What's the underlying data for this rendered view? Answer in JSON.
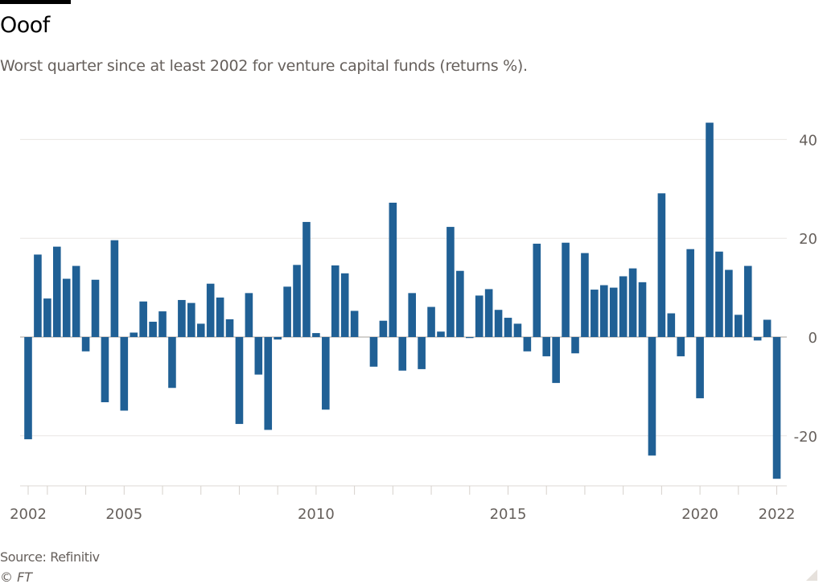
{
  "header": {
    "title": "Ooof",
    "subtitle": "Worst quarter since at least 2002 for venture capital funds (returns %)."
  },
  "footer": {
    "source": "Source: Refinitiv",
    "copyright": "© FT"
  },
  "colors": {
    "bar": "#206095",
    "grid": "#e9e6e3",
    "zero_line": "#a8a39e",
    "text": "#66605c"
  },
  "chart_data": {
    "type": "bar",
    "title": "Ooof",
    "subtitle": "Worst quarter since at least 2002 for venture capital funds (returns %).",
    "xlabel": "",
    "ylabel": "",
    "ylim": [
      -30,
      45
    ],
    "y_ticks": [
      40,
      20,
      0,
      -20
    ],
    "y_tick_labels": [
      "40",
      "20",
      "0",
      "-20"
    ],
    "y_axis_position": "right",
    "grid": true,
    "x_tick_labels": [
      {
        "category": "2002 Q3",
        "label": "2002"
      },
      {
        "category": "2005 Q1",
        "label": "2005"
      },
      {
        "category": "2010 Q1",
        "label": "2010"
      },
      {
        "category": "2015 Q1",
        "label": "2015"
      },
      {
        "category": "2020 Q1",
        "label": "2020"
      },
      {
        "category": "2022 Q1",
        "label": "2022"
      }
    ],
    "categories": [
      "2002 Q3",
      "2002 Q4",
      "2003 Q1",
      "2003 Q2",
      "2003 Q3",
      "2003 Q4",
      "2004 Q1",
      "2004 Q2",
      "2004 Q3",
      "2004 Q4",
      "2005 Q1",
      "2005 Q2",
      "2005 Q3",
      "2005 Q4",
      "2006 Q1",
      "2006 Q2",
      "2006 Q3",
      "2006 Q4",
      "2007 Q1",
      "2007 Q2",
      "2007 Q3",
      "2007 Q4",
      "2008 Q1",
      "2008 Q2",
      "2008 Q3",
      "2008 Q4",
      "2009 Q1",
      "2009 Q2",
      "2009 Q3",
      "2009 Q4",
      "2010 Q1",
      "2010 Q2",
      "2010 Q3",
      "2010 Q4",
      "2011 Q1",
      "2011 Q2",
      "2011 Q3",
      "2011 Q4",
      "2012 Q1",
      "2012 Q2",
      "2012 Q3",
      "2012 Q4",
      "2013 Q1",
      "2013 Q2",
      "2013 Q3",
      "2013 Q4",
      "2014 Q1",
      "2014 Q2",
      "2014 Q3",
      "2014 Q4",
      "2015 Q1",
      "2015 Q2",
      "2015 Q3",
      "2015 Q4",
      "2016 Q1",
      "2016 Q2",
      "2016 Q3",
      "2016 Q4",
      "2017 Q1",
      "2017 Q2",
      "2017 Q3",
      "2017 Q4",
      "2018 Q1",
      "2018 Q2",
      "2018 Q3",
      "2018 Q4",
      "2019 Q1",
      "2019 Q2",
      "2019 Q3",
      "2019 Q4",
      "2020 Q1",
      "2020 Q2",
      "2020 Q3",
      "2020 Q4",
      "2021 Q1",
      "2021 Q2",
      "2021 Q3",
      "2021 Q4",
      "2022 Q1"
    ],
    "values": [
      -20.7,
      16.7,
      7.8,
      18.3,
      11.8,
      14.4,
      -2.9,
      11.6,
      -13.2,
      19.6,
      -14.9,
      0.9,
      7.2,
      3.1,
      5.2,
      -10.3,
      7.5,
      6.9,
      2.7,
      10.8,
      8.0,
      3.6,
      -17.6,
      8.9,
      -7.6,
      -18.8,
      -0.5,
      10.2,
      14.6,
      23.3,
      0.8,
      -14.7,
      14.5,
      12.9,
      5.3,
      0,
      -6.0,
      3.3,
      27.2,
      -6.8,
      8.9,
      -6.5,
      6.1,
      1.1,
      22.3,
      13.4,
      -0.2,
      8.4,
      9.7,
      5.5,
      3.9,
      2.7,
      -2.9,
      18.9,
      -3.9,
      -9.3,
      19.1,
      -3.3,
      17.0,
      9.6,
      10.5,
      10.0,
      12.3,
      13.9,
      11.1,
      -24.0,
      29.1,
      4.8,
      -3.9,
      17.8,
      -12.4,
      43.4,
      17.3,
      13.6,
      4.5,
      14.4,
      -0.7,
      3.5,
      -28.7
    ]
  }
}
